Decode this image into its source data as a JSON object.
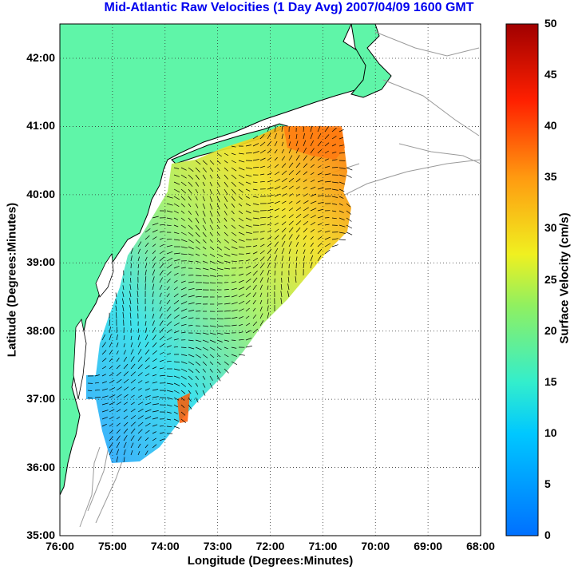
{
  "title": "Mid-Atlantic Raw Velocities (1 Day Avg) 2007/04/09 1600 GMT",
  "axes": {
    "xlabel": "Longitude (Degrees:Minutes)",
    "ylabel": "Latitude (Degrees:Minutes)",
    "x_ticks": [
      "76:00",
      "75:00",
      "74:00",
      "73:00",
      "72:00",
      "71:00",
      "70:00",
      "69:00",
      "68:00"
    ],
    "y_ticks": [
      "42:00",
      "41:00",
      "40:00",
      "39:00",
      "38:00",
      "37:00",
      "36:00",
      "35:00"
    ]
  },
  "colorbar": {
    "label": "Surface Velocity (cm/s)",
    "ticks": [
      "50",
      "45",
      "40",
      "35",
      "30",
      "25",
      "20",
      "15",
      "10",
      "5",
      "0"
    ],
    "min": 0,
    "max": 50
  },
  "colors": {
    "title": "#0000ee",
    "land": "#5ff5a8",
    "coast_outline": "#000000",
    "bathymetry": "#9a9a9a",
    "grid": "#333333"
  }
}
